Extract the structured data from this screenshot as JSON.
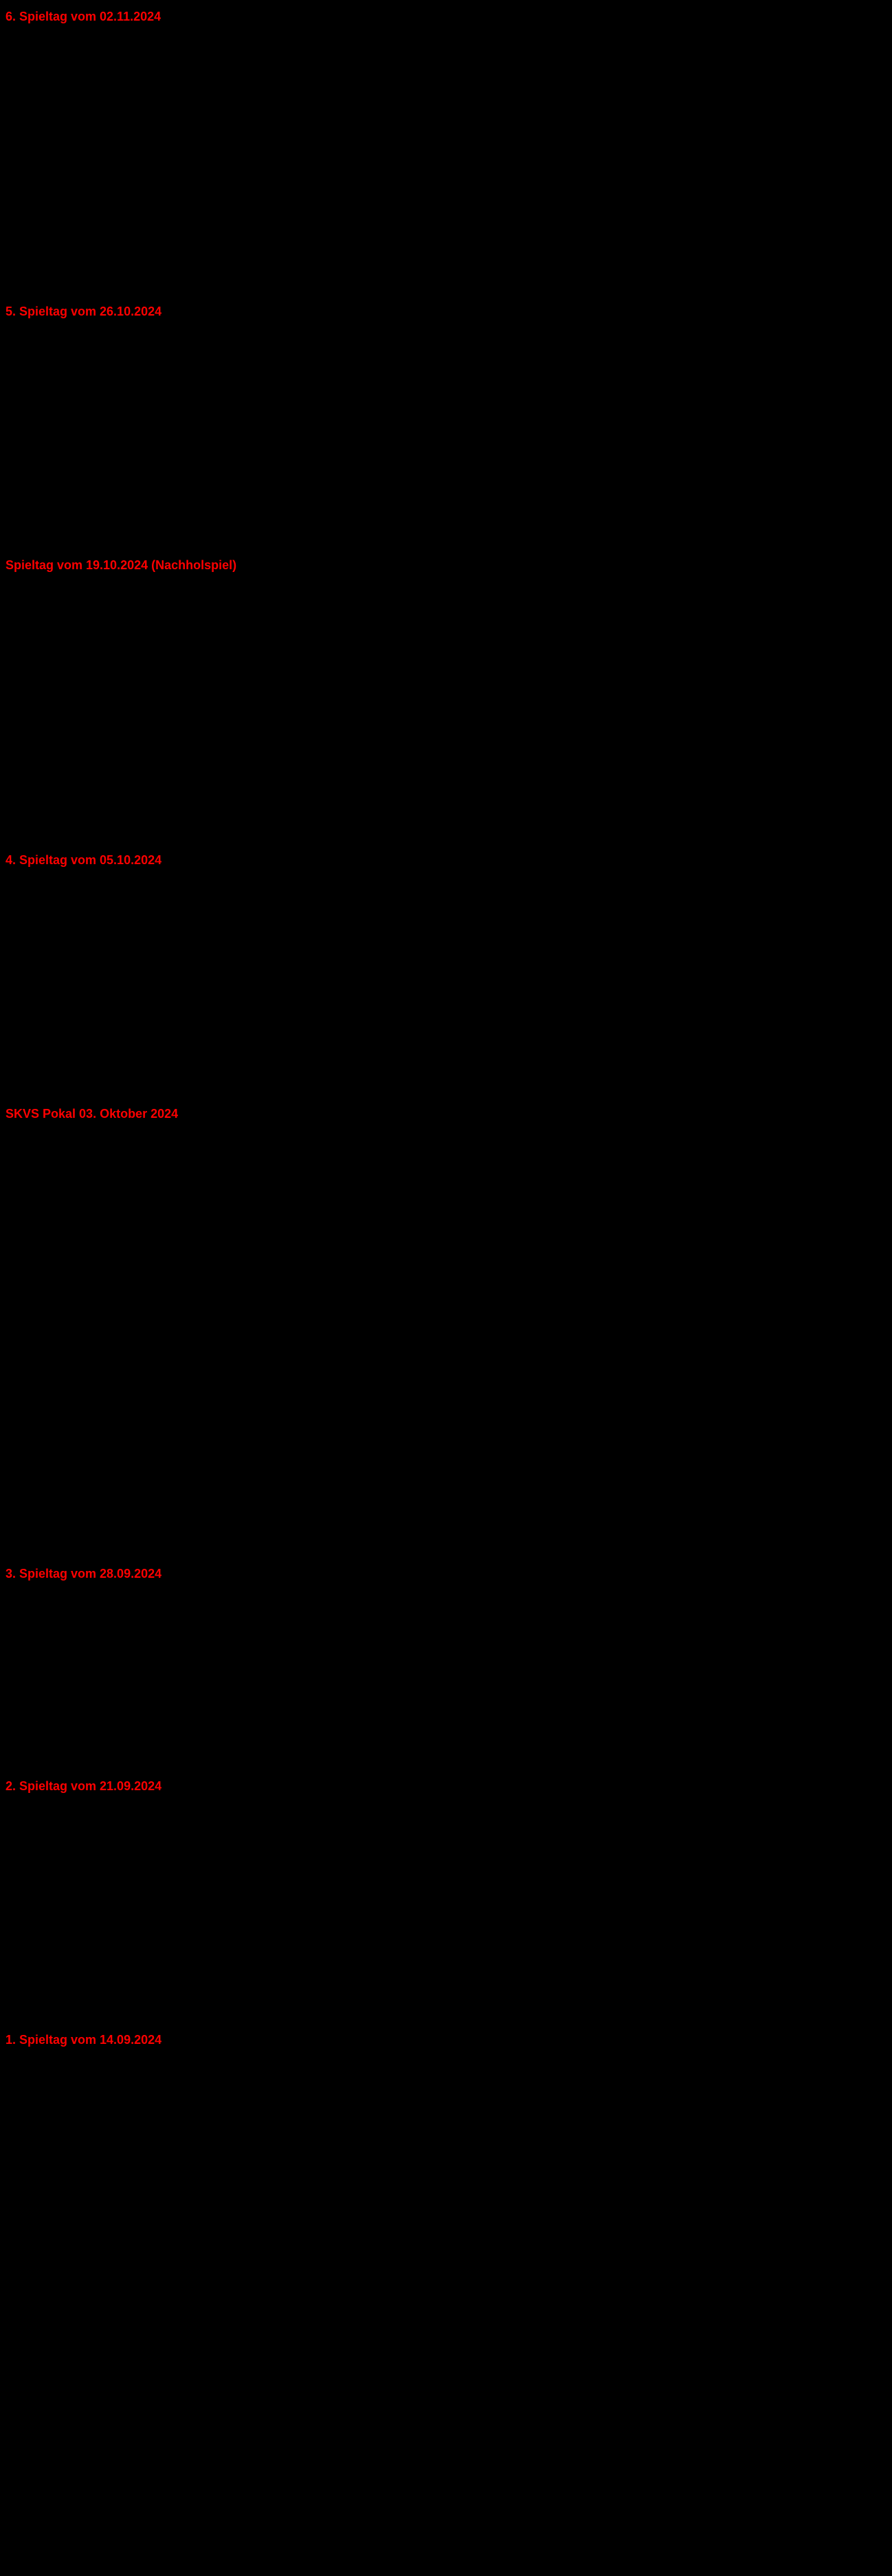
{
  "sections": [
    {
      "title": "6. Spieltag vom 02.11.2024",
      "spacer": "spacer-large"
    },
    {
      "title": "5. Spieltag vom 26.10.2024",
      "spacer": "spacer-medium"
    },
    {
      "title": "Spieltag vom 19.10.2024 (Nachholspiel)",
      "spacer": "spacer-large"
    },
    {
      "title": "4. Spieltag vom 05.10.2024",
      "spacer": "spacer-medium"
    },
    {
      "title": "SKVS Pokal 03. Oktober 2024",
      "spacer": "spacer-xlarge"
    },
    {
      "title": "3. Spieltag vom 28.09.2024",
      "spacer": "spacer-xsmall"
    },
    {
      "title": "2. Spieltag vom 21.09.2024",
      "spacer": "spacer-medium"
    },
    {
      "title": "1. Spieltag vom 14.09.2024",
      "spacer": "spacer-small"
    }
  ]
}
